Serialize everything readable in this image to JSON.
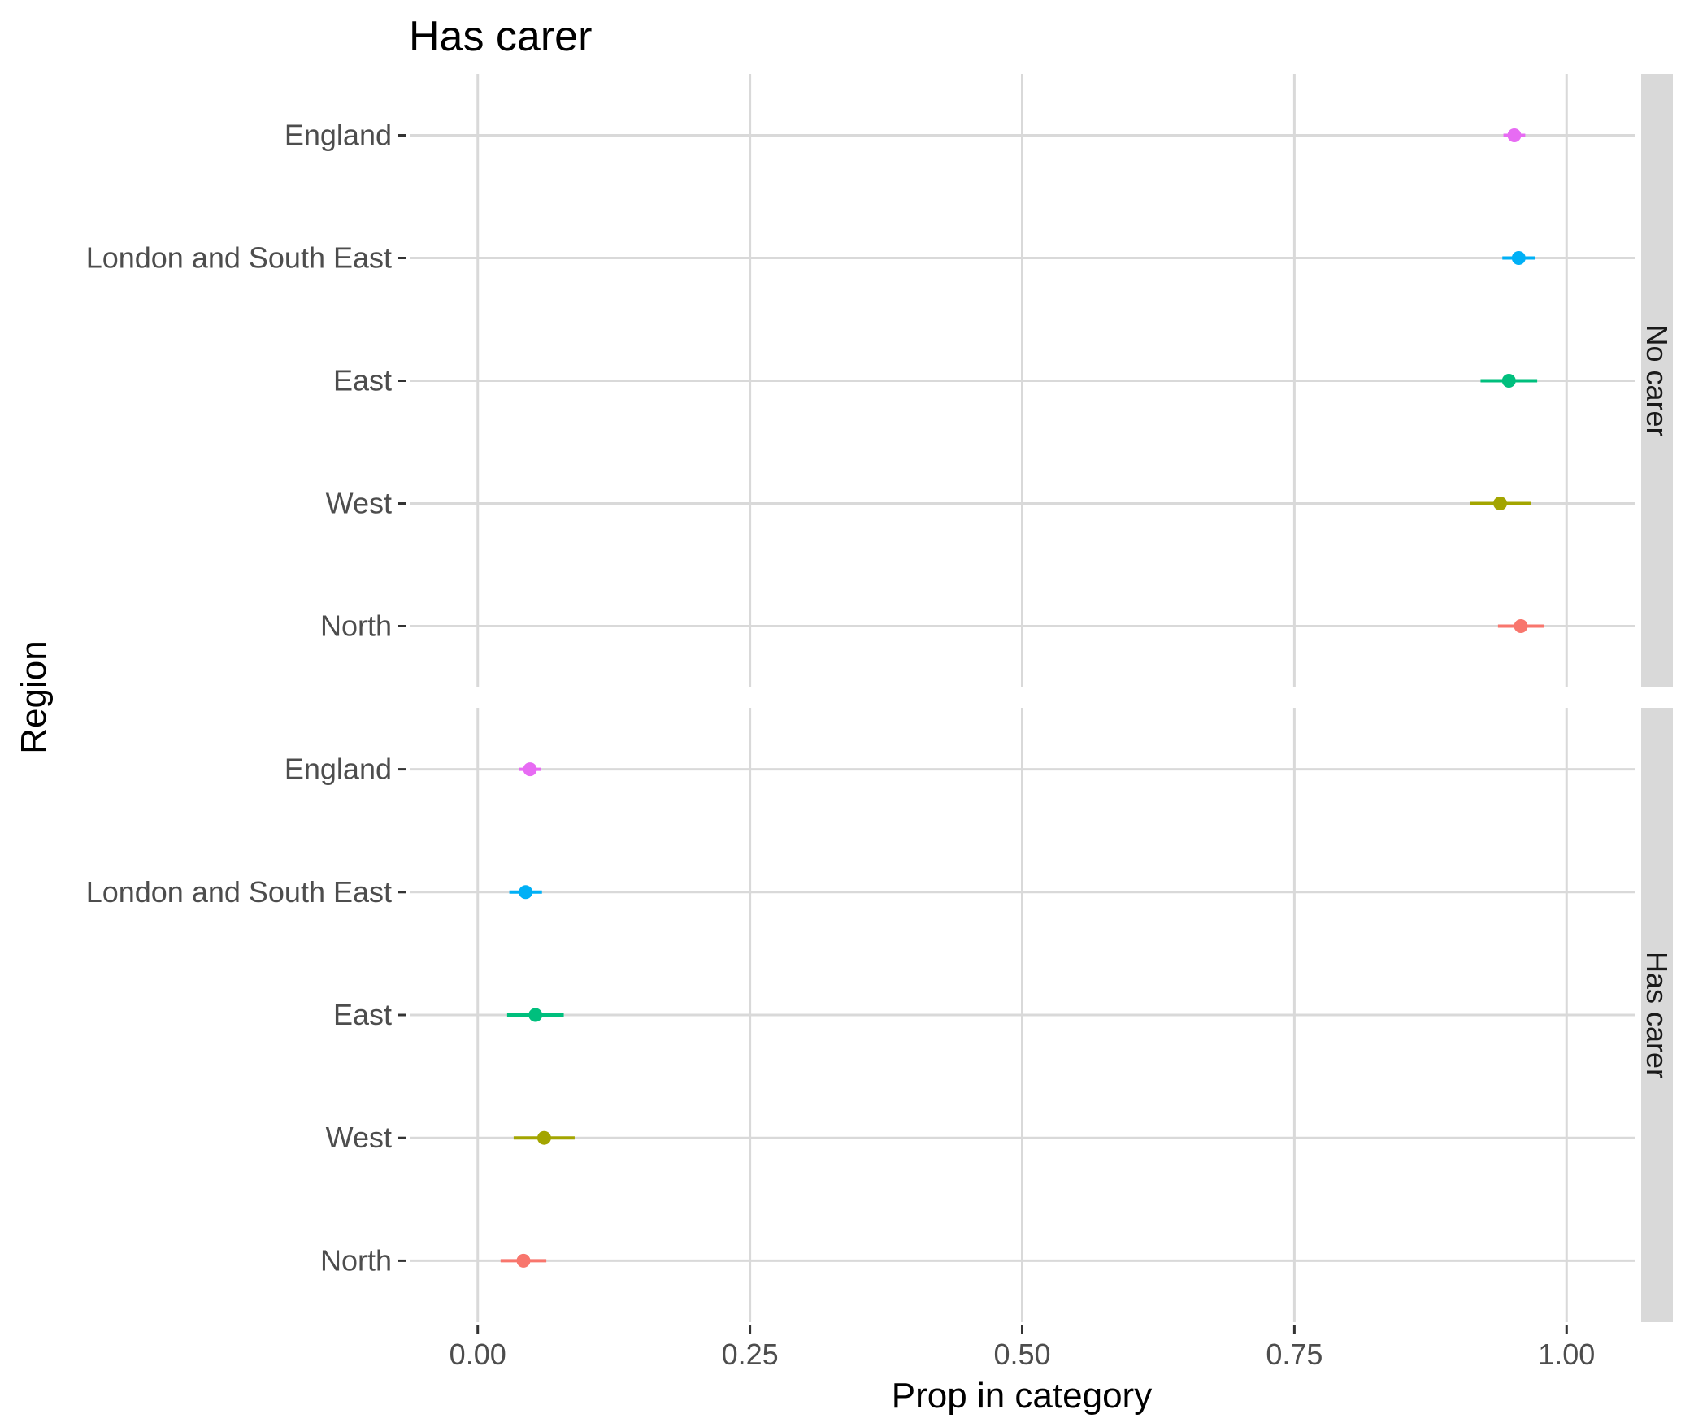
{
  "chart_data": {
    "type": "scatter",
    "title": "Has carer",
    "xlabel": "Prop in category",
    "ylabel": "Region",
    "xlim": [
      -0.0625,
      1.0625
    ],
    "x_ticks": [
      0.0,
      0.25,
      0.5,
      0.75,
      1.0
    ],
    "x_tick_labels": [
      "0.00",
      "0.25",
      "0.50",
      "0.75",
      "1.00"
    ],
    "grid": true,
    "legend": "none",
    "categories": [
      "England",
      "London and South East",
      "East",
      "West",
      "North"
    ],
    "colors": {
      "England": "#E76BF3",
      "London and South East": "#00B0F6",
      "East": "#00BF7D",
      "West": "#A3A500",
      "North": "#F8766D"
    },
    "panels": [
      {
        "label": "No carer",
        "points": [
          {
            "region": "England",
            "value": 0.952,
            "lower": 0.942,
            "upper": 0.962
          },
          {
            "region": "London and South East",
            "value": 0.956,
            "lower": 0.941,
            "upper": 0.971
          },
          {
            "region": "East",
            "value": 0.947,
            "lower": 0.921,
            "upper": 0.973
          },
          {
            "region": "West",
            "value": 0.939,
            "lower": 0.911,
            "upper": 0.967
          },
          {
            "region": "North",
            "value": 0.958,
            "lower": 0.937,
            "upper": 0.979
          }
        ]
      },
      {
        "label": "Has carer",
        "points": [
          {
            "region": "England",
            "value": 0.048,
            "lower": 0.038,
            "upper": 0.058
          },
          {
            "region": "London and South East",
            "value": 0.044,
            "lower": 0.029,
            "upper": 0.059
          },
          {
            "region": "East",
            "value": 0.053,
            "lower": 0.027,
            "upper": 0.079
          },
          {
            "region": "West",
            "value": 0.061,
            "lower": 0.033,
            "upper": 0.089
          },
          {
            "region": "North",
            "value": 0.042,
            "lower": 0.021,
            "upper": 0.063
          }
        ]
      }
    ]
  }
}
